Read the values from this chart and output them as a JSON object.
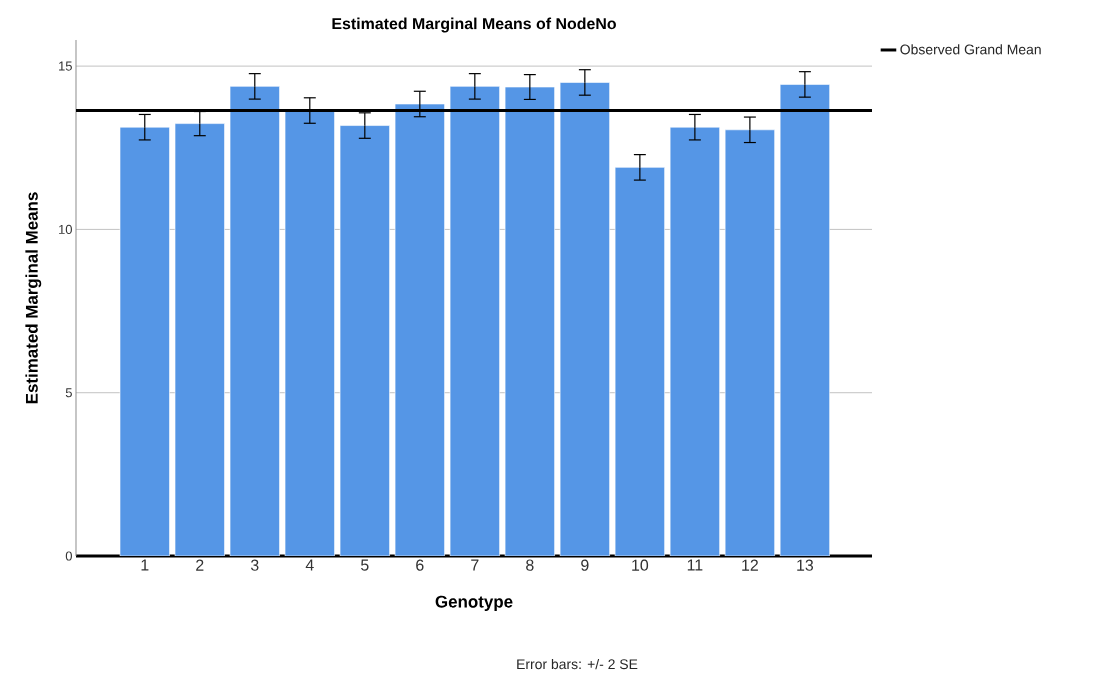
{
  "chart_data": {
    "type": "bar",
    "title": "Estimated Marginal Means of NodeNo",
    "xlabel": "Genotype",
    "ylabel": "Estimated Marginal Means",
    "categories": [
      "1",
      "2",
      "3",
      "4",
      "5",
      "6",
      "7",
      "8",
      "9",
      "10",
      "11",
      "12",
      "13"
    ],
    "values": [
      13.13,
      13.24,
      14.38,
      13.64,
      13.18,
      13.84,
      14.38,
      14.36,
      14.5,
      11.9,
      13.13,
      13.05,
      14.44
    ],
    "errors": [
      0.39,
      0.37,
      0.39,
      0.39,
      0.39,
      0.39,
      0.39,
      0.38,
      0.39,
      0.39,
      0.39,
      0.39,
      0.39
    ],
    "color": "#5596e6",
    "ylim": [
      0,
      15.8
    ],
    "yticks": [
      0,
      5,
      10,
      15
    ],
    "grid": "y",
    "legend": "top right",
    "ref_lines": [
      {
        "axis": "y",
        "value": 13.64,
        "label": "Observed Grand Mean",
        "color": "#000000"
      }
    ],
    "annotations": [
      "Error bars: +/- 2 SE"
    ]
  }
}
